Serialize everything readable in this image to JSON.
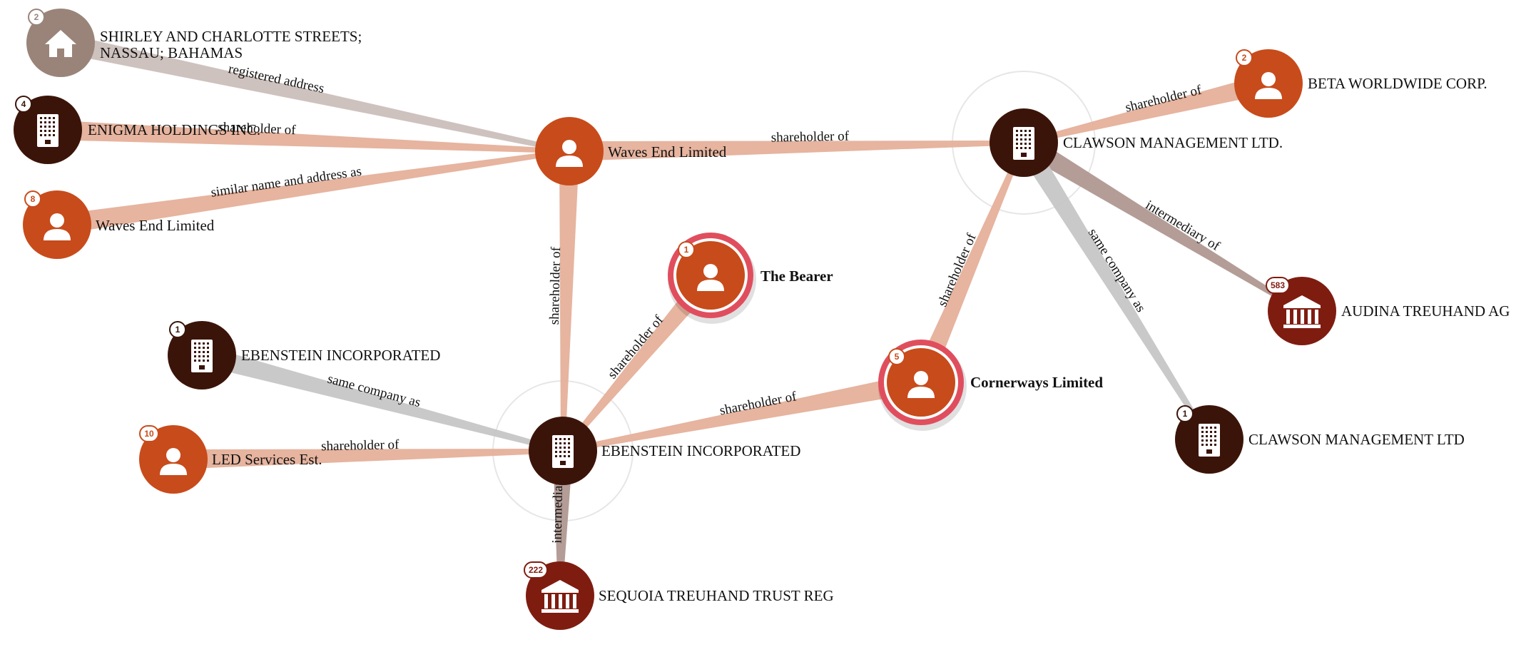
{
  "colors": {
    "company": "#3b1409",
    "officer": "#c84b1b",
    "intermediary": "#7f1c10",
    "address": "#9a8479",
    "edge_shareholder": "#e5b09a",
    "edge_registered": "#cbbfba",
    "edge_intermediary": "#b09891",
    "edge_same": "#c6c6c6",
    "highlight": "#e04e5e"
  },
  "graph": {
    "nodes": [
      {
        "id": "addr",
        "kind": "address",
        "icon": "house-icon",
        "badge": "2",
        "label_lines": [
          "SHIRLEY AND CHARLOTTE STREETS;",
          "NASSAU; BAHAMAS"
        ],
        "bold": false,
        "highlight": false
      },
      {
        "id": "enigma",
        "kind": "company",
        "icon": "building-icon",
        "badge": "4",
        "label_lines": [
          "ENIGMA HOLDINGS INC."
        ],
        "bold": false,
        "highlight": false
      },
      {
        "id": "waves2",
        "kind": "officer",
        "icon": "person-icon",
        "badge": "8",
        "label_lines": [
          "Waves End Limited"
        ],
        "bold": false,
        "highlight": false
      },
      {
        "id": "waves1",
        "kind": "officer",
        "icon": "person-icon",
        "badge": "",
        "label_lines": [
          "Waves End Limited"
        ],
        "bold": false,
        "highlight": false
      },
      {
        "id": "clawson1",
        "kind": "company",
        "icon": "building-icon",
        "badge": "",
        "label_lines": [
          "CLAWSON MANAGEMENT LTD."
        ],
        "bold": false,
        "highlight": false
      },
      {
        "id": "beta",
        "kind": "officer",
        "icon": "person-icon",
        "badge": "2",
        "label_lines": [
          "BETA WORLDWIDE CORP."
        ],
        "bold": false,
        "highlight": false
      },
      {
        "id": "audina",
        "kind": "intermediary",
        "icon": "bank-icon",
        "badge": "583",
        "label_lines": [
          "AUDINA TREUHAND AG"
        ],
        "bold": false,
        "highlight": false
      },
      {
        "id": "clawson2",
        "kind": "company",
        "icon": "building-icon",
        "badge": "1",
        "label_lines": [
          "CLAWSON MANAGEMENT LTD"
        ],
        "bold": false,
        "highlight": false
      },
      {
        "id": "bearer",
        "kind": "officer",
        "icon": "person-icon",
        "badge": "1",
        "label_lines": [
          "The Bearer"
        ],
        "bold": true,
        "highlight": true
      },
      {
        "id": "cornerways",
        "kind": "officer",
        "icon": "person-icon",
        "badge": "5",
        "label_lines": [
          "Cornerways Limited"
        ],
        "bold": true,
        "highlight": true
      },
      {
        "id": "eben2",
        "kind": "company",
        "icon": "building-icon",
        "badge": "1",
        "label_lines": [
          "EBENSTEIN INCORPORATED"
        ],
        "bold": false,
        "highlight": false
      },
      {
        "id": "led",
        "kind": "officer",
        "icon": "person-icon",
        "badge": "10",
        "label_lines": [
          "LED Services Est."
        ],
        "bold": false,
        "highlight": false
      },
      {
        "id": "eben1",
        "kind": "company",
        "icon": "building-icon",
        "badge": "",
        "label_lines": [
          "EBENSTEIN INCORPORATED"
        ],
        "bold": false,
        "highlight": false
      },
      {
        "id": "sequoia",
        "kind": "intermediary",
        "icon": "bank-icon",
        "badge": "222",
        "label_lines": [
          "SEQUOIA TREUHAND TRUST REG"
        ],
        "bold": false,
        "highlight": false
      }
    ],
    "edges": [
      {
        "from": "addr",
        "to": "waves1",
        "label": "registered address",
        "type": "registered"
      },
      {
        "from": "enigma",
        "to": "waves1",
        "label": "shareholder of",
        "type": "shareholder"
      },
      {
        "from": "waves2",
        "to": "waves1",
        "label": "similar name and address as",
        "type": "shareholder"
      },
      {
        "from": "waves1",
        "to": "clawson1",
        "label": "shareholder of",
        "type": "shareholder"
      },
      {
        "from": "waves1",
        "to": "eben1",
        "label": "shareholder of",
        "type": "shareholder"
      },
      {
        "from": "beta",
        "to": "clawson1",
        "label": "shareholder of",
        "type": "shareholder"
      },
      {
        "from": "clawson1",
        "to": "audina",
        "label": "intermediary of",
        "type": "intermediary"
      },
      {
        "from": "clawson1",
        "to": "clawson2",
        "label": "same company as",
        "type": "same"
      },
      {
        "from": "cornerways",
        "to": "clawson1",
        "label": "shareholder of",
        "type": "shareholder"
      },
      {
        "from": "bearer",
        "to": "eben1",
        "label": "shareholder of",
        "type": "shareholder"
      },
      {
        "from": "cornerways",
        "to": "eben1",
        "label": "shareholder of",
        "type": "shareholder"
      },
      {
        "from": "eben2",
        "to": "eben1",
        "label": "same company as",
        "type": "same"
      },
      {
        "from": "led",
        "to": "eben1",
        "label": "shareholder of",
        "type": "shareholder"
      },
      {
        "from": "eben1",
        "to": "sequoia",
        "label": "intermediary of",
        "type": "intermediary"
      }
    ]
  }
}
